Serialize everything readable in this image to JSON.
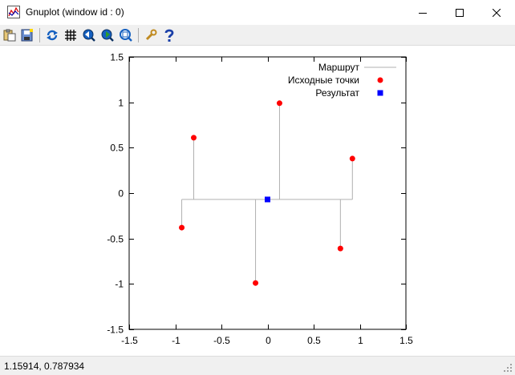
{
  "window": {
    "title": "Gnuplot (window id : 0)",
    "icon": "gnuplot-app-icon"
  },
  "toolbar": {
    "buttons": [
      {
        "name": "copy-to-clipboard-button",
        "icon": "clipboard-icon"
      },
      {
        "name": "print-button",
        "icon": "printer-icon"
      },
      {
        "name": "replot-button",
        "icon": "refresh-icon"
      },
      {
        "name": "grid-button",
        "icon": "grid-icon"
      },
      {
        "name": "zoom-previous-button",
        "icon": "zoom-previous-icon"
      },
      {
        "name": "zoom-next-button",
        "icon": "zoom-next-icon"
      },
      {
        "name": "autoscale-button",
        "icon": "zoom-fit-icon"
      },
      {
        "name": "options-button",
        "icon": "wrench-icon"
      },
      {
        "name": "help-button",
        "icon": "help-icon"
      }
    ]
  },
  "status": {
    "coordinates": "1.15914,  0.787934"
  },
  "colors": {
    "source_points": "#ff0000",
    "result": "#0000ff",
    "route": "#b0b0b0"
  },
  "chart_data": {
    "type": "scatter",
    "xlim": [
      -1.5,
      1.5
    ],
    "ylim": [
      -1.5,
      1.5
    ],
    "xticks": [
      "-1.5",
      "-1",
      "-0.5",
      "0",
      "0.5",
      "1",
      "1.5"
    ],
    "yticks": [
      "1.5",
      "1",
      "0.5",
      "0",
      "-0.5",
      "-1",
      "-1.5"
    ],
    "xtick_values": [
      -1.5,
      -1,
      -0.5,
      0,
      0.5,
      1,
      1.5
    ],
    "ytick_values": [
      1.5,
      1,
      0.5,
      0,
      -0.5,
      -1,
      -1.5
    ],
    "grid": false,
    "legend_position": "top-right",
    "series": [
      {
        "name": "Маршрут",
        "kind": "line",
        "segments": [
          [
            [
              -0.93,
              -0.07
            ],
            [
              0.92,
              -0.07
            ]
          ],
          [
            [
              -0.93,
              -0.07
            ],
            [
              -0.93,
              -0.38
            ]
          ],
          [
            [
              -0.8,
              -0.07
            ],
            [
              -0.8,
              0.61
            ]
          ],
          [
            [
              -0.13,
              -0.07
            ],
            [
              -0.13,
              -0.99
            ]
          ],
          [
            [
              0.13,
              -0.07
            ],
            [
              0.13,
              0.99
            ]
          ],
          [
            [
              0.79,
              -0.07
            ],
            [
              0.79,
              -0.61
            ]
          ],
          [
            [
              0.92,
              -0.07
            ],
            [
              0.92,
              0.38
            ]
          ]
        ]
      },
      {
        "name": "Исходные точки",
        "kind": "points",
        "marker": "circle",
        "points": [
          [
            -0.93,
            -0.38
          ],
          [
            -0.8,
            0.61
          ],
          [
            -0.13,
            -0.99
          ],
          [
            0.13,
            0.99
          ],
          [
            0.79,
            -0.61
          ],
          [
            0.92,
            0.38
          ]
        ]
      },
      {
        "name": "Результат",
        "kind": "points",
        "marker": "square",
        "points": [
          [
            0.0,
            -0.07
          ]
        ]
      }
    ]
  }
}
